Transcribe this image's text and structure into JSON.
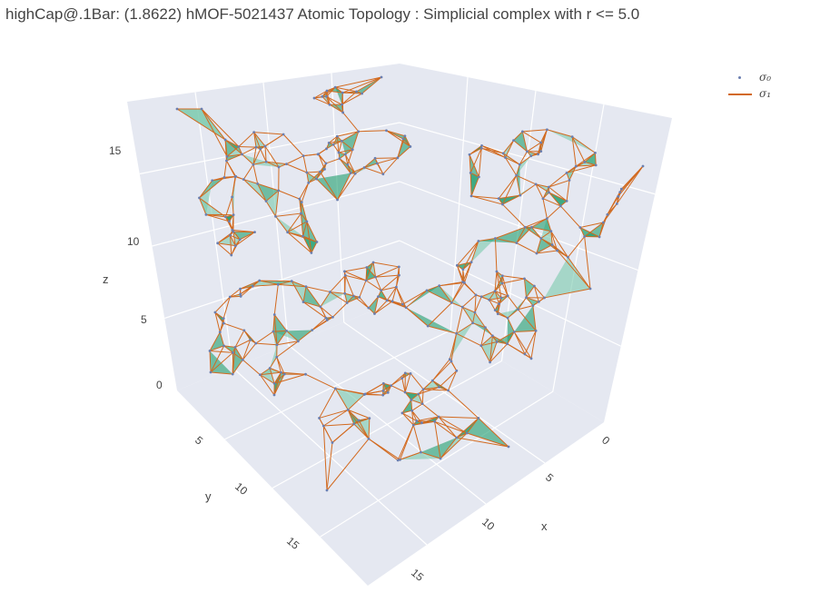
{
  "title": "highCap@.1Bar: (1.8622) hMOF-5021437 Atomic Topology : Simplicial complex with r <= 5.0",
  "legend": {
    "items": [
      {
        "symbol": "point",
        "label": "σ₀"
      },
      {
        "symbol": "line",
        "label": "σ₁"
      }
    ]
  },
  "colors": {
    "face": "#1f9e6e",
    "face_light": "#79c9ae",
    "edge": "#d2691e",
    "node": "#6b7fb0",
    "pane": "#e5e8f1",
    "grid": "#ffffff"
  },
  "chart_data": {
    "type": "scatter3d",
    "title": "highCap@.1Bar: (1.8622) hMOF-5021437 Atomic Topology : Simplicial complex with r <= 5.0",
    "axes": {
      "x": {
        "label": "x",
        "ticks": [
          "0",
          "5",
          "10",
          "15"
        ],
        "range": [
          0,
          17
        ]
      },
      "y": {
        "label": "y",
        "ticks": [
          "5",
          "10",
          "15"
        ],
        "range": [
          0,
          17
        ]
      },
      "z": {
        "label": "z",
        "ticks": [
          "0",
          "5",
          "10",
          "15"
        ],
        "range": [
          0,
          17
        ]
      }
    },
    "legend_position": "top-right",
    "series": [
      {
        "name": "σ₀",
        "mode": "markers"
      },
      {
        "name": "σ₁",
        "mode": "lines"
      }
    ]
  }
}
